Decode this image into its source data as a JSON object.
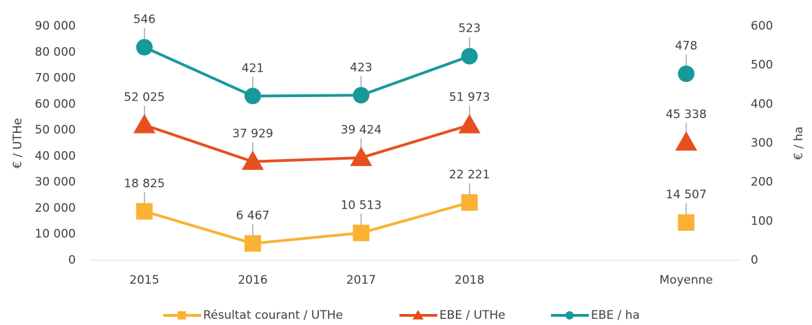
{
  "chart_data": {
    "type": "line",
    "categories": [
      "2015",
      "2016",
      "2017",
      "2018",
      null,
      "Moyenne"
    ],
    "ylabel": "€ / UTHe",
    "y2label": "€ / ha",
    "ylim": [
      0,
      90000
    ],
    "yticks": [
      0,
      {
        "value": 10000,
        "label": "10 000"
      },
      {
        "value": 20000,
        "label": "20 000"
      },
      {
        "value": 30000,
        "label": "30 000"
      },
      {
        "value": 40000,
        "label": "40 000"
      },
      {
        "value": 50000,
        "label": "50 000"
      },
      {
        "value": 60000,
        "label": "60 000"
      },
      {
        "value": 70000,
        "label": "70 000"
      },
      {
        "value": 80000,
        "label": "80 000"
      },
      {
        "value": 90000,
        "label": "90 000"
      }
    ],
    "y2lim": [
      0,
      600
    ],
    "y2ticks": [
      0,
      100,
      200,
      300,
      400,
      500,
      600
    ],
    "grid": false,
    "legend": "bottom",
    "series": [
      {
        "name": "Résultat courant / UTHe",
        "color": "#f9b233",
        "marker": "square",
        "values": [
          18825,
          6467,
          10513,
          22221,
          null,
          14507
        ],
        "value_labels": [
          "18 825",
          "6 467",
          "10 513",
          "22 221",
          null,
          "14 507"
        ]
      },
      {
        "name": "EBE / UTHe",
        "color": "#e6501e",
        "marker": "triangle",
        "values": [
          52025,
          37929,
          39424,
          51973,
          null,
          45338
        ],
        "value_labels": [
          "52 025",
          "37 929",
          "39 424",
          "51 973",
          null,
          "45 338"
        ]
      },
      {
        "name": "EBE / ha",
        "color": "#17999a",
        "marker": "circle",
        "axis": "y2",
        "values": [
          546,
          421,
          423,
          523,
          null,
          478
        ]
      }
    ]
  }
}
